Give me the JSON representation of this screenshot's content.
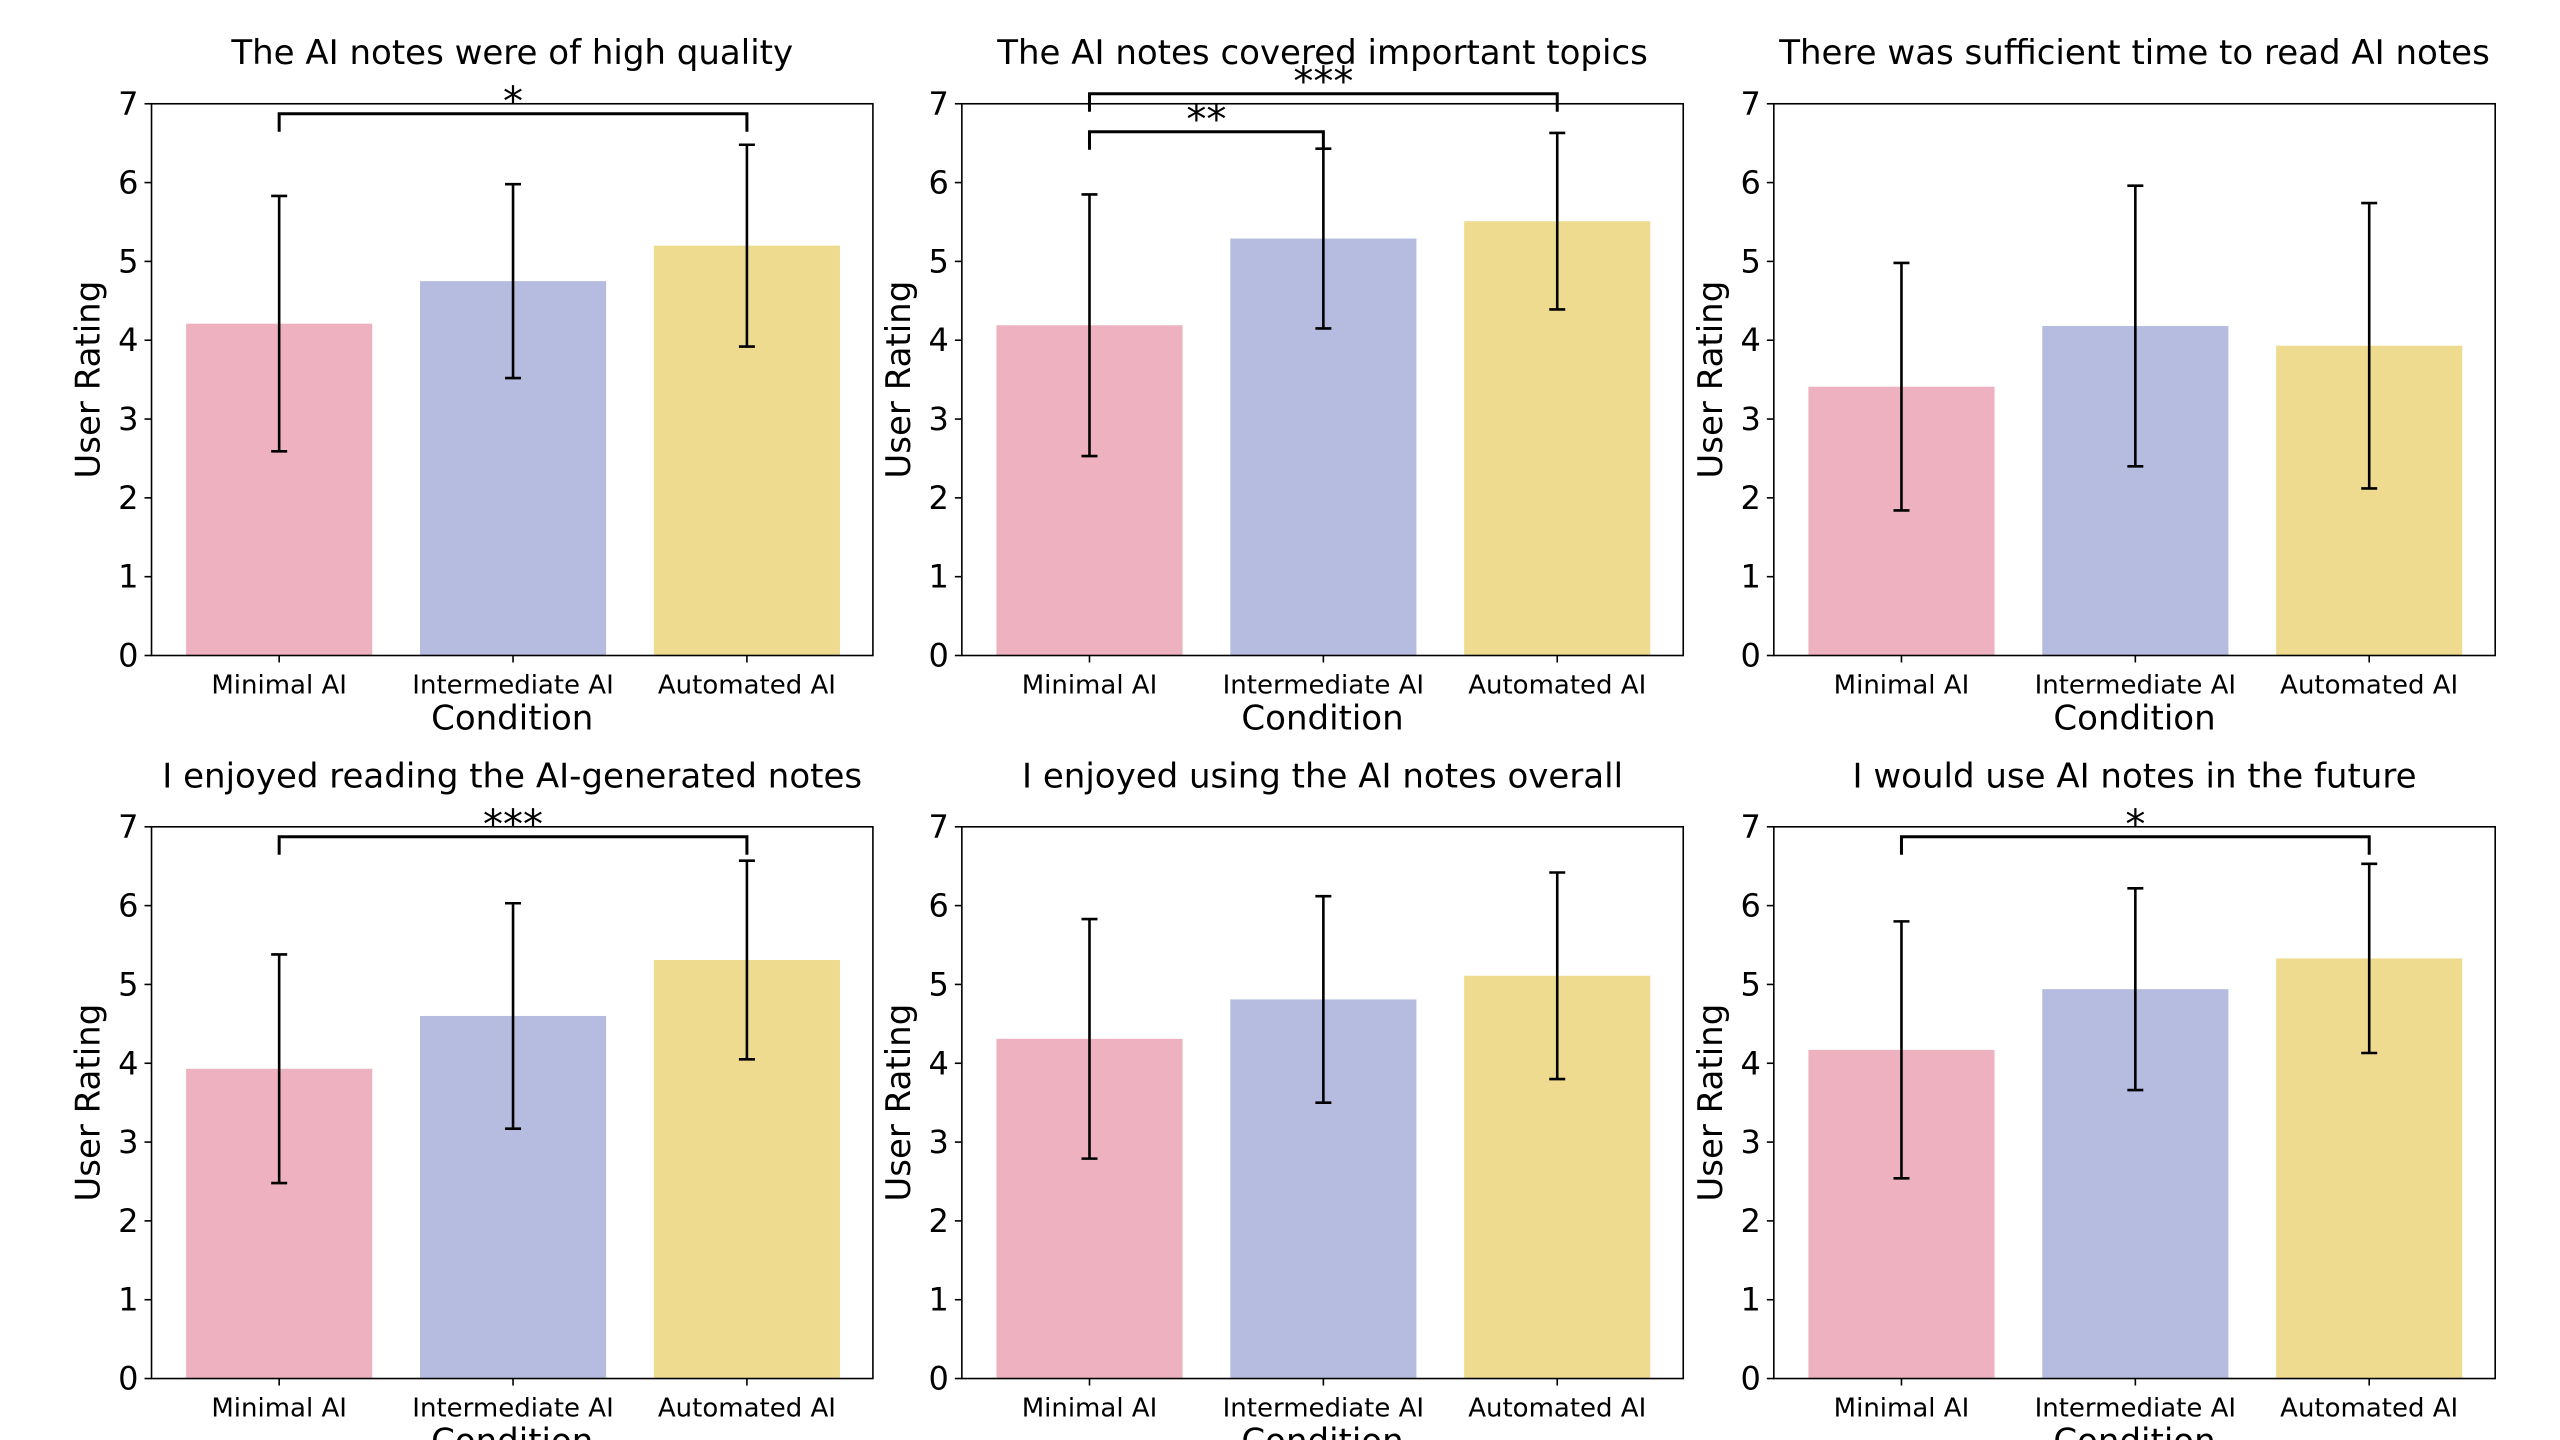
{
  "colors": {
    "Minimal AI": "#edb1bf",
    "Intermediate AI": "#b6bce0",
    "Automated AI": "#eedb90"
  },
  "chart_data": [
    {
      "type": "bar",
      "title": "The AI notes were of high quality",
      "xlabel": "Condition",
      "ylabel": "User Rating",
      "ylim": [
        0,
        7
      ],
      "yticks": [
        "0",
        "1",
        "2",
        "3",
        "4",
        "5",
        "6",
        "7"
      ],
      "categories": [
        "Minimal AI",
        "Intermediate AI",
        "Automated AI"
      ],
      "values": [
        4.21,
        4.75,
        5.2
      ],
      "errors": [
        1.62,
        1.23,
        1.28
      ],
      "significance": [
        {
          "from": 0,
          "to": 2,
          "label": "*"
        }
      ]
    },
    {
      "type": "bar",
      "title": "The AI notes covered important topics",
      "xlabel": "Condition",
      "ylabel": "User Rating",
      "ylim": [
        0,
        7
      ],
      "yticks": [
        "0",
        "1",
        "2",
        "3",
        "4",
        "5",
        "6",
        "7"
      ],
      "categories": [
        "Minimal AI",
        "Intermediate AI",
        "Automated AI"
      ],
      "values": [
        4.19,
        5.29,
        5.51
      ],
      "errors": [
        1.66,
        1.14,
        1.12
      ],
      "significance": [
        {
          "from": 0,
          "to": 2,
          "label": "***"
        },
        {
          "from": 0,
          "to": 1,
          "label": "**"
        }
      ]
    },
    {
      "type": "bar",
      "title": "There was sufficient time to read AI notes",
      "xlabel": "Condition",
      "ylabel": "User Rating",
      "ylim": [
        0,
        7
      ],
      "yticks": [
        "0",
        "1",
        "2",
        "3",
        "4",
        "5",
        "6",
        "7"
      ],
      "categories": [
        "Minimal AI",
        "Intermediate AI",
        "Automated AI"
      ],
      "values": [
        3.41,
        4.18,
        3.93
      ],
      "errors": [
        1.57,
        1.78,
        1.81
      ],
      "significance": []
    },
    {
      "type": "bar",
      "title": "I enjoyed reading the AI-generated notes",
      "xlabel": "Condition",
      "ylabel": "User Rating",
      "ylim": [
        0,
        7
      ],
      "yticks": [
        "0",
        "1",
        "2",
        "3",
        "4",
        "5",
        "6",
        "7"
      ],
      "categories": [
        "Minimal AI",
        "Intermediate AI",
        "Automated AI"
      ],
      "values": [
        3.93,
        4.6,
        5.31
      ],
      "errors": [
        1.45,
        1.43,
        1.26
      ],
      "significance": [
        {
          "from": 0,
          "to": 2,
          "label": "***"
        }
      ]
    },
    {
      "type": "bar",
      "title": "I enjoyed using the AI notes overall",
      "xlabel": "Condition",
      "ylabel": "User Rating",
      "ylim": [
        0,
        7
      ],
      "yticks": [
        "0",
        "1",
        "2",
        "3",
        "4",
        "5",
        "6",
        "7"
      ],
      "categories": [
        "Minimal AI",
        "Intermediate AI",
        "Automated AI"
      ],
      "values": [
        4.31,
        4.81,
        5.11
      ],
      "errors": [
        1.52,
        1.31,
        1.31
      ],
      "significance": []
    },
    {
      "type": "bar",
      "title": "I would use AI notes in the future",
      "xlabel": "Condition",
      "ylabel": "User Rating",
      "ylim": [
        0,
        7
      ],
      "yticks": [
        "0",
        "1",
        "2",
        "3",
        "4",
        "5",
        "6",
        "7"
      ],
      "categories": [
        "Minimal AI",
        "Intermediate AI",
        "Automated AI"
      ],
      "values": [
        4.17,
        4.94,
        5.33
      ],
      "errors": [
        1.63,
        1.28,
        1.2
      ],
      "significance": [
        {
          "from": 0,
          "to": 2,
          "label": "*"
        }
      ]
    }
  ]
}
